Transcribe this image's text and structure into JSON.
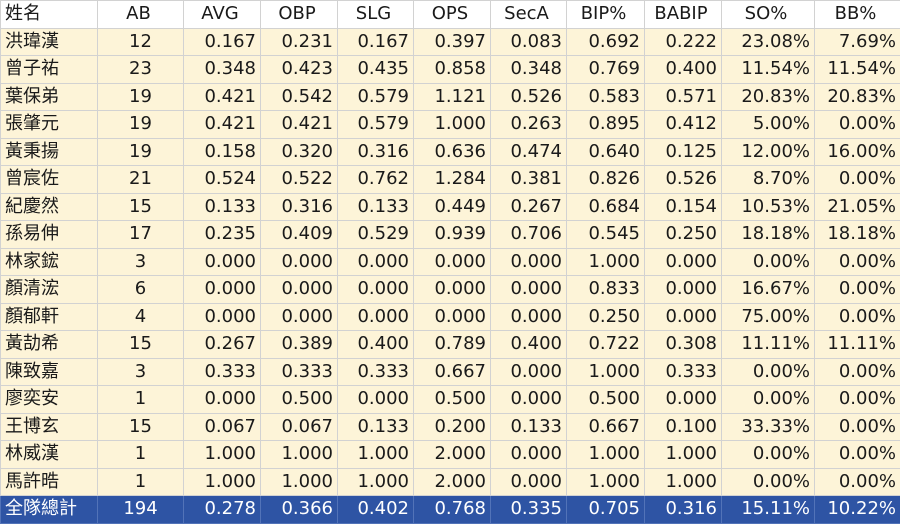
{
  "columns": [
    "姓名",
    "AB",
    "AVG",
    "OBP",
    "SLG",
    "OPS",
    "SecA",
    "BIP%",
    "BABIP",
    "SO%",
    "BB%"
  ],
  "rows": [
    [
      "洪瑋漢",
      "12",
      "0.167",
      "0.231",
      "0.167",
      "0.397",
      "0.083",
      "0.692",
      "0.222",
      "23.08%",
      "7.69%"
    ],
    [
      "曾子祐",
      "23",
      "0.348",
      "0.423",
      "0.435",
      "0.858",
      "0.348",
      "0.769",
      "0.400",
      "11.54%",
      "11.54%"
    ],
    [
      "葉保弟",
      "19",
      "0.421",
      "0.542",
      "0.579",
      "1.121",
      "0.526",
      "0.583",
      "0.571",
      "20.83%",
      "20.83%"
    ],
    [
      "張肇元",
      "19",
      "0.421",
      "0.421",
      "0.579",
      "1.000",
      "0.263",
      "0.895",
      "0.412",
      "5.00%",
      "0.00%"
    ],
    [
      "黃秉揚",
      "19",
      "0.158",
      "0.320",
      "0.316",
      "0.636",
      "0.474",
      "0.640",
      "0.125",
      "12.00%",
      "16.00%"
    ],
    [
      "曾宸佐",
      "21",
      "0.524",
      "0.522",
      "0.762",
      "1.284",
      "0.381",
      "0.826",
      "0.526",
      "8.70%",
      "0.00%"
    ],
    [
      "紀慶然",
      "15",
      "0.133",
      "0.316",
      "0.133",
      "0.449",
      "0.267",
      "0.684",
      "0.154",
      "10.53%",
      "21.05%"
    ],
    [
      "孫易伸",
      "17",
      "0.235",
      "0.409",
      "0.529",
      "0.939",
      "0.706",
      "0.545",
      "0.250",
      "18.18%",
      "18.18%"
    ],
    [
      "林家鋐",
      "3",
      "0.000",
      "0.000",
      "0.000",
      "0.000",
      "0.000",
      "1.000",
      "0.000",
      "0.00%",
      "0.00%"
    ],
    [
      "顏清浤",
      "6",
      "0.000",
      "0.000",
      "0.000",
      "0.000",
      "0.000",
      "0.833",
      "0.000",
      "16.67%",
      "0.00%"
    ],
    [
      "顏郁軒",
      "4",
      "0.000",
      "0.000",
      "0.000",
      "0.000",
      "0.000",
      "0.250",
      "0.000",
      "75.00%",
      "0.00%"
    ],
    [
      "黃劼希",
      "15",
      "0.267",
      "0.389",
      "0.400",
      "0.789",
      "0.400",
      "0.722",
      "0.308",
      "11.11%",
      "11.11%"
    ],
    [
      "陳致嘉",
      "3",
      "0.333",
      "0.333",
      "0.333",
      "0.667",
      "0.000",
      "1.000",
      "0.333",
      "0.00%",
      "0.00%"
    ],
    [
      "廖奕安",
      "1",
      "0.000",
      "0.500",
      "0.000",
      "0.500",
      "0.000",
      "0.500",
      "0.000",
      "0.00%",
      "0.00%"
    ],
    [
      "王博玄",
      "15",
      "0.067",
      "0.067",
      "0.133",
      "0.200",
      "0.133",
      "0.667",
      "0.100",
      "33.33%",
      "0.00%"
    ],
    [
      "林威漢",
      "1",
      "1.000",
      "1.000",
      "1.000",
      "2.000",
      "0.000",
      "1.000",
      "1.000",
      "0.00%",
      "0.00%"
    ],
    [
      "馬許晧",
      "1",
      "1.000",
      "1.000",
      "1.000",
      "2.000",
      "0.000",
      "1.000",
      "1.000",
      "0.00%",
      "0.00%"
    ]
  ],
  "total": [
    "全隊總計",
    "194",
    "0.278",
    "0.366",
    "0.402",
    "0.768",
    "0.335",
    "0.705",
    "0.316",
    "15.11%",
    "10.22%"
  ],
  "colors": {
    "row_background": "#fdf4d8",
    "total_background": "#2e54a4",
    "total_text": "#ffffff",
    "grid_line": "#d2d2d2"
  }
}
